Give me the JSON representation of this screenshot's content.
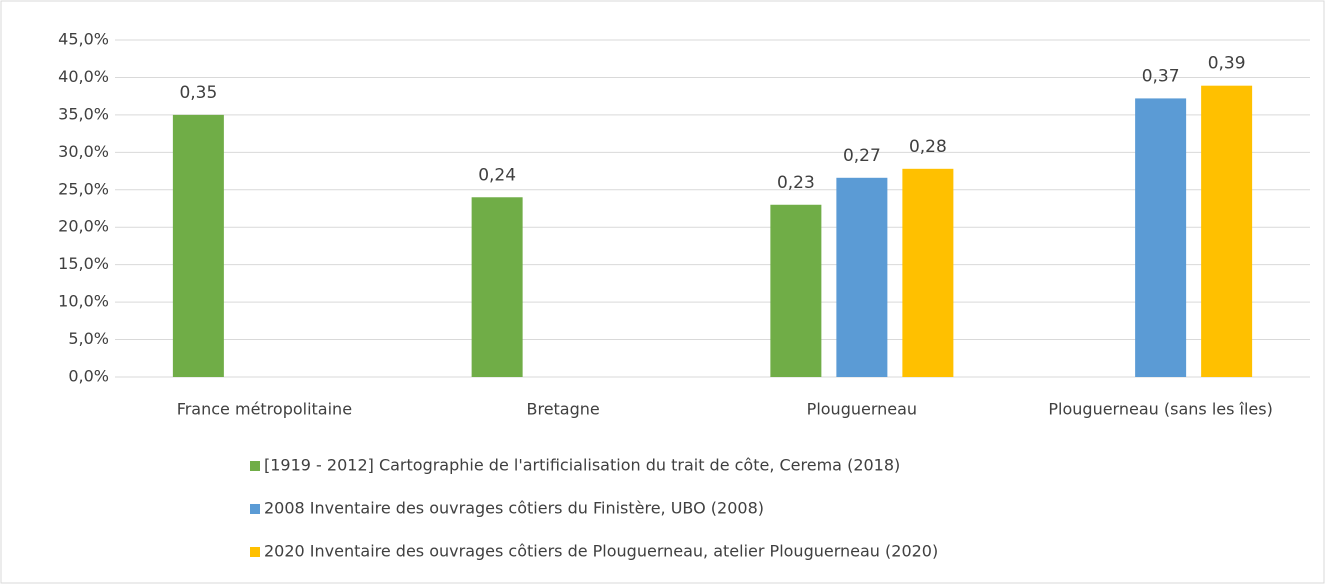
{
  "chart_data": {
    "type": "bar",
    "categories": [
      "France métropolitaine",
      "Bretagne",
      "Plouguerneau",
      "Plouguerneau (sans les îles)"
    ],
    "series": [
      {
        "name": "[1919 - 2012] Cartographie de l'artificialisation du trait de côte, Cerema (2018)",
        "color": "#70ad47",
        "values": [
          35,
          24,
          23,
          null
        ],
        "value_labels": [
          "0,35",
          "0,24",
          "0,23",
          null
        ]
      },
      {
        "name": "2008 Inventaire des ouvrages côtiers du Finistère, UBO (2008)",
        "color": "#5b9bd5",
        "values": [
          null,
          null,
          26.6,
          37.2
        ],
        "value_labels": [
          null,
          null,
          "0,27",
          "0,37"
        ]
      },
      {
        "name": "2020 Inventaire des ouvrages côtiers de Plouguerneau, atelier Plouguerneau (2020)",
        "color": "#ffc000",
        "values": [
          null,
          null,
          27.8,
          38.9
        ],
        "value_labels": [
          null,
          null,
          "0,28",
          "0,39"
        ]
      }
    ],
    "ylim": [
      0,
      45
    ],
    "yticks": [
      {
        "value": 0,
        "label": "0,0%"
      },
      {
        "value": 5,
        "label": "5,0%"
      },
      {
        "value": 10,
        "label": "10,0%"
      },
      {
        "value": 15,
        "label": "15,0%"
      },
      {
        "value": 20,
        "label": "20,0%"
      },
      {
        "value": 25,
        "label": "25,0%"
      },
      {
        "value": 30,
        "label": "30,0%"
      },
      {
        "value": 35,
        "label": "35,0%"
      },
      {
        "value": 40,
        "label": "40,0%"
      },
      {
        "value": 45,
        "label": "45,0%"
      }
    ],
    "grid": true
  }
}
